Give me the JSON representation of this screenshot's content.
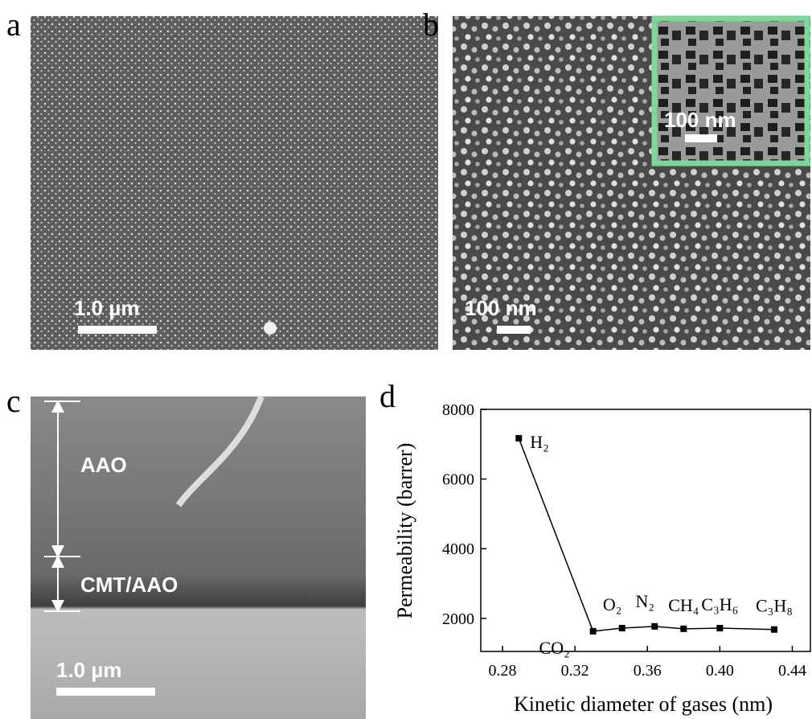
{
  "panels": {
    "a": {
      "label": "a",
      "scale_bar": "1.0 µm"
    },
    "b": {
      "label": "b",
      "scale_bar": "100 nm",
      "inset_scale_bar": "100 nm"
    },
    "c": {
      "label": "c",
      "scale_bar": "1.0 µm",
      "layers": [
        "AAO",
        "CMT/AAO"
      ]
    },
    "d": {
      "label": "d"
    }
  },
  "chart_data": {
    "type": "line",
    "x_label": "Kinetic diameter of gases (nm)",
    "y_label": "Permeability (barrer)",
    "x": [
      0.289,
      0.33,
      0.346,
      0.364,
      0.38,
      0.4,
      0.43
    ],
    "values": [
      7170,
      1630,
      1720,
      1770,
      1700,
      1720,
      1680
    ],
    "point_labels": [
      "H₂",
      "CO₂",
      "O₂",
      "N₂",
      "CH₄",
      "C₃H₆",
      "C₃H₈"
    ],
    "color": "#000000",
    "xlim": [
      0.268,
      0.45
    ],
    "xticks": [
      0.28,
      0.32,
      0.36,
      {
        "value": 0.4,
        "label": "0.40"
      },
      0.44
    ],
    "ylim": [
      1050,
      8000
    ],
    "yticks": [
      2000,
      4000,
      6000,
      8000
    ]
  }
}
